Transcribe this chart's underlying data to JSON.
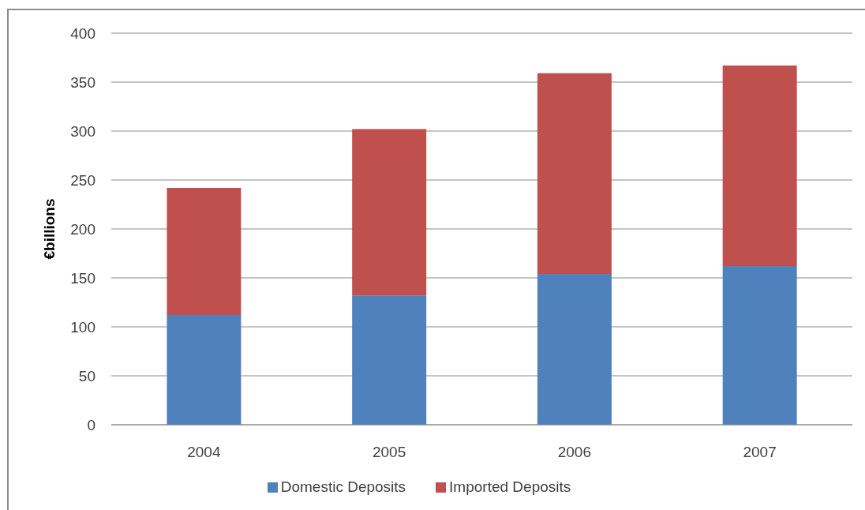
{
  "chart_data": {
    "type": "bar",
    "categories": [
      "2004",
      "2005",
      "2006",
      "2007"
    ],
    "ylabel": "€billions",
    "stacked": true,
    "series": [
      {
        "name": "Domestic Deposits",
        "color": "#4f81bd",
        "values": [
          112,
          132,
          154,
          162
        ]
      },
      {
        "name": "Imported Deposits",
        "color": "#c0504d",
        "values": [
          130,
          170,
          205,
          205
        ]
      }
    ],
    "ylim": [
      0,
      400
    ],
    "yticks": [
      0,
      50,
      100,
      150,
      200,
      250,
      300,
      350,
      400
    ],
    "grid": "y",
    "legend": "bottom"
  }
}
